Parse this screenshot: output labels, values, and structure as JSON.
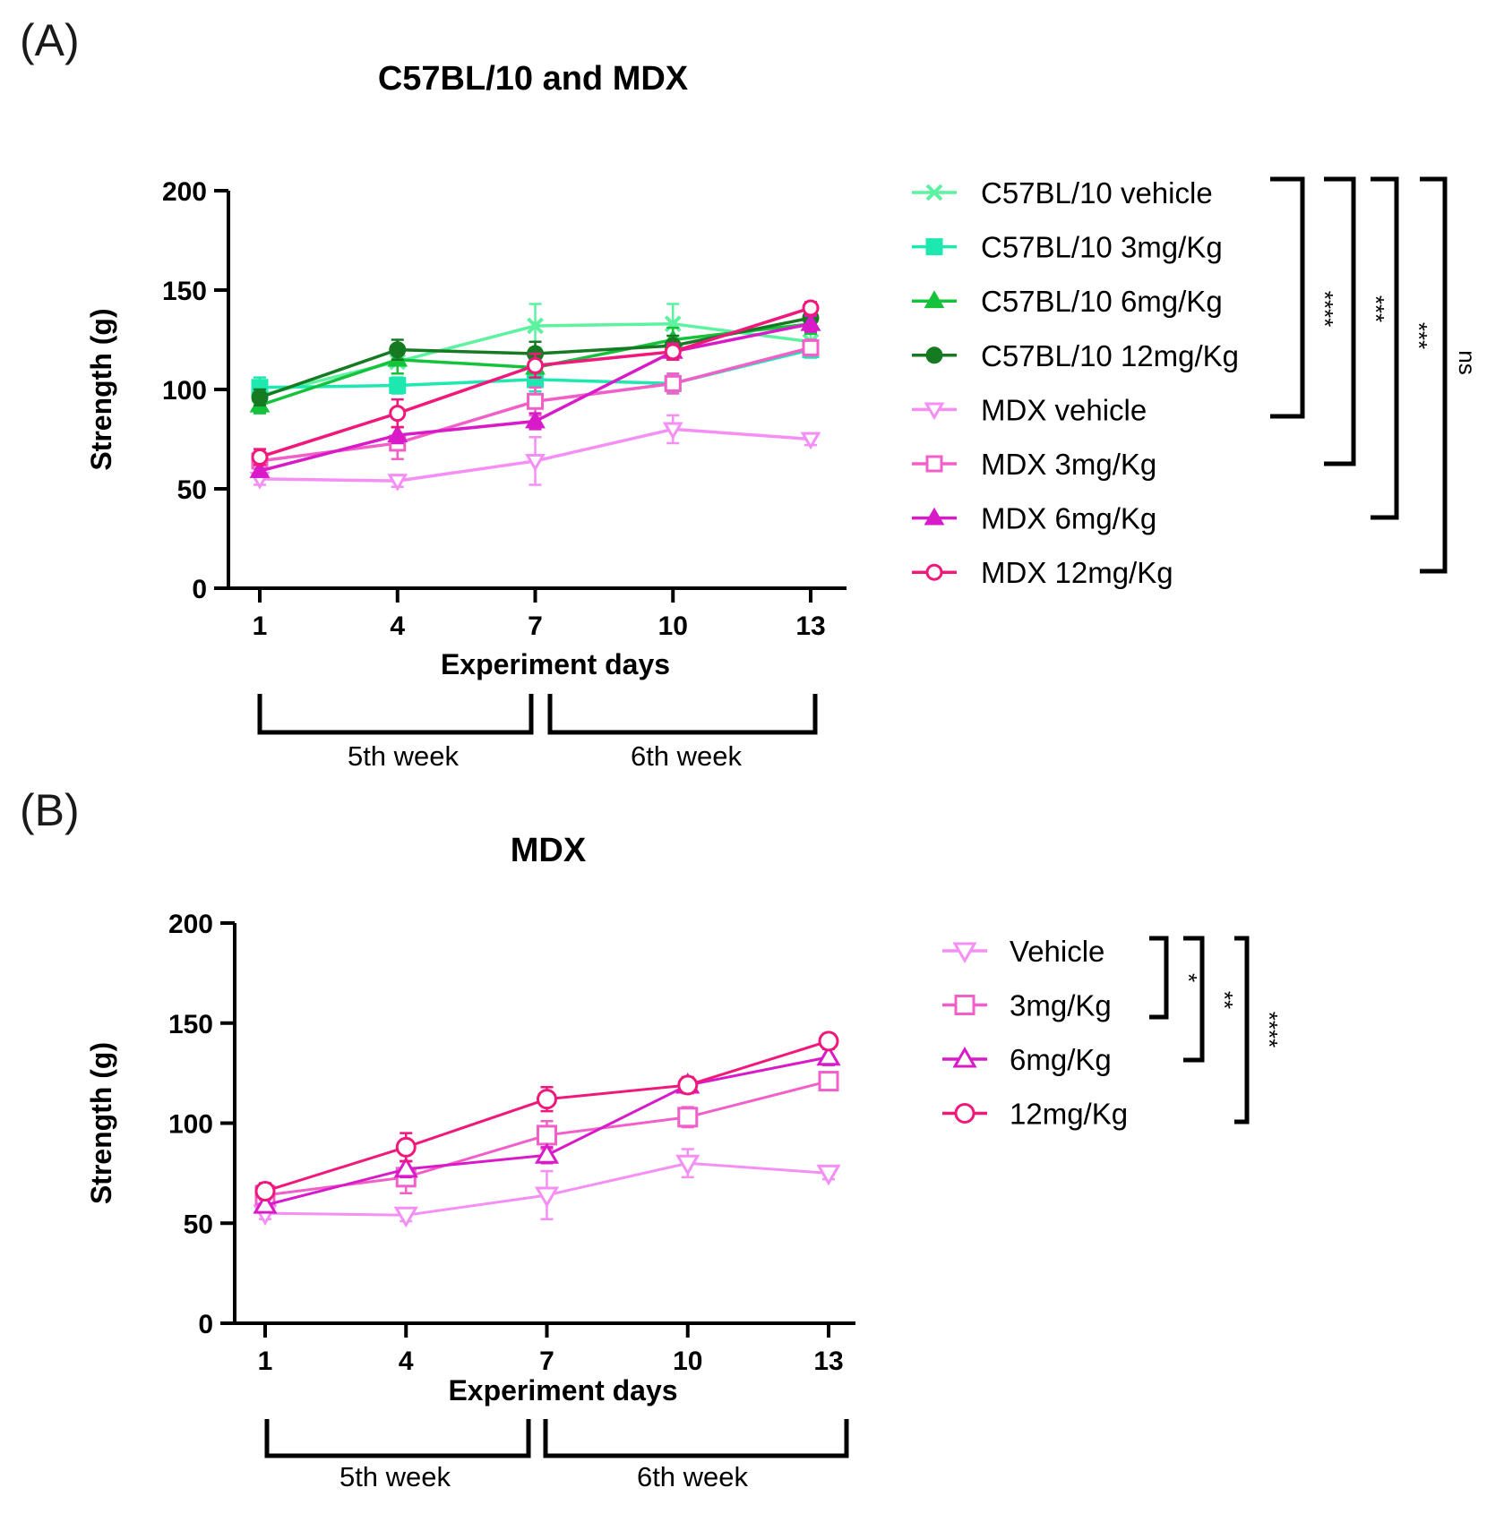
{
  "chart_data": [
    {
      "panel_label": "(A)",
      "type": "line",
      "title": "C57BL/10 and MDX",
      "xlabel": "Experiment days",
      "ylabel": "Strength (g)",
      "x": [
        1,
        4,
        7,
        10,
        13
      ],
      "x_tick_labels": [
        "1",
        "4",
        "7",
        "10",
        "13"
      ],
      "y_ticks": [
        "0",
        "50",
        "100",
        "150",
        "200"
      ],
      "ylim": [
        0,
        200
      ],
      "grid": false,
      "legend_position": "right",
      "week_brackets": [
        {
          "label": "5th week",
          "from": 1,
          "to": 7
        },
        {
          "label": "6th week",
          "from": 7,
          "to": 13
        }
      ],
      "series": [
        {
          "name": "C57BL/10 vehicle",
          "color": "#5cf2a0",
          "marker": "x",
          "values": [
            97,
            114,
            132,
            133,
            124
          ],
          "errors": [
            6,
            6,
            11,
            10,
            5
          ]
        },
        {
          "name": "C57BL/10 3mg/Kg",
          "color": "#1de8b0",
          "marker": "square-filled",
          "values": [
            101,
            102,
            105,
            103,
            120
          ],
          "errors": [
            5,
            4,
            6,
            4,
            4
          ]
        },
        {
          "name": "C57BL/10 6mg/Kg",
          "color": "#15c23c",
          "marker": "triangle-filled",
          "values": [
            92,
            115,
            111,
            125,
            133
          ],
          "errors": [
            4,
            7,
            5,
            6,
            5
          ]
        },
        {
          "name": "C57BL/10 12mg/Kg",
          "color": "#157a22",
          "marker": "circle-filled",
          "values": [
            96,
            120,
            118,
            122,
            136
          ],
          "errors": [
            4,
            5,
            6,
            5,
            4
          ]
        },
        {
          "name": "MDX vehicle",
          "color": "#f58ef5",
          "marker": "triangle-down-open",
          "values": [
            55,
            54,
            64,
            80,
            75
          ],
          "errors": [
            3,
            3,
            12,
            7,
            3
          ]
        },
        {
          "name": "MDX 3mg/Kg",
          "color": "#f25fc8",
          "marker": "square-open",
          "values": [
            64,
            73,
            94,
            103,
            121
          ],
          "errors": [
            4,
            8,
            7,
            5,
            4
          ]
        },
        {
          "name": "MDX 6mg/Kg",
          "color": "#d81ac8",
          "marker": "triangle-filled",
          "values": [
            59,
            77,
            84,
            119,
            133
          ],
          "errors": [
            3,
            4,
            4,
            4,
            4
          ]
        },
        {
          "name": "MDX 12mg/Kg",
          "color": "#f0187a",
          "marker": "circle-open",
          "values": [
            66,
            88,
            112,
            119,
            141
          ],
          "errors": [
            4,
            7,
            6,
            4,
            3
          ]
        }
      ],
      "significance": [
        {
          "label": "****",
          "from": "C57BL/10 vehicle",
          "to": "MDX vehicle"
        },
        {
          "label": "***",
          "from": "C57BL/10 vehicle",
          "to": "MDX 3mg/Kg"
        },
        {
          "label": "***",
          "from": "C57BL/10 vehicle",
          "to": "MDX 6mg/Kg"
        },
        {
          "label": "ns",
          "from": "C57BL/10 vehicle",
          "to": "MDX 12mg/Kg"
        }
      ]
    },
    {
      "panel_label": "(B)",
      "type": "line",
      "title": "MDX",
      "xlabel": "Experiment days",
      "ylabel": "Strength (g)",
      "x": [
        1,
        4,
        7,
        10,
        13
      ],
      "x_tick_labels": [
        "1",
        "4",
        "7",
        "10",
        "13"
      ],
      "y_ticks": [
        "0",
        "50",
        "100",
        "150",
        "200"
      ],
      "ylim": [
        0,
        200
      ],
      "grid": false,
      "legend_position": "right",
      "week_brackets": [
        {
          "label": "5th week",
          "from": 1,
          "to": 7
        },
        {
          "label": "6th week",
          "from": 7,
          "to": 13
        }
      ],
      "series": [
        {
          "name": "Vehicle",
          "color": "#f58ef5",
          "marker": "triangle-down-open",
          "values": [
            55,
            54,
            64,
            80,
            75
          ],
          "errors": [
            3,
            3,
            12,
            7,
            3
          ]
        },
        {
          "name": "3mg/Kg",
          "color": "#f25fc8",
          "marker": "square-open",
          "values": [
            64,
            73,
            94,
            103,
            121
          ],
          "errors": [
            4,
            8,
            7,
            5,
            4
          ]
        },
        {
          "name": "6mg/Kg",
          "color": "#d81ac8",
          "marker": "triangle-open",
          "values": [
            59,
            77,
            84,
            119,
            133
          ],
          "errors": [
            3,
            4,
            4,
            4,
            4
          ]
        },
        {
          "name": "12mg/Kg",
          "color": "#f0187a",
          "marker": "circle-open",
          "values": [
            66,
            88,
            112,
            119,
            141
          ],
          "errors": [
            4,
            7,
            6,
            4,
            3
          ]
        }
      ],
      "significance": [
        {
          "label": "*",
          "from": "Vehicle",
          "to": "3mg/Kg"
        },
        {
          "label": "**",
          "from": "Vehicle",
          "to": "6mg/Kg"
        },
        {
          "label": "****",
          "from": "Vehicle",
          "to": "12mg/Kg"
        }
      ]
    }
  ]
}
